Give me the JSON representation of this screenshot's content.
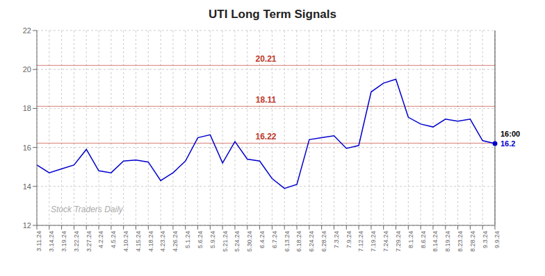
{
  "chart_data": {
    "type": "line",
    "title": "UTI Long Term Signals",
    "watermark": "Stock Traders Daily",
    "categories": [
      "3.11.24",
      "3.14.24",
      "3.19.24",
      "3.22.24",
      "3.27.24",
      "4.2.24",
      "4.5.24",
      "4.10.24",
      "4.15.24",
      "4.18.24",
      "4.23.24",
      "4.26.24",
      "5.1.24",
      "5.6.24",
      "5.9.24",
      "5.21.24",
      "5.24.24",
      "5.30.24",
      "6.4.24",
      "6.7.24",
      "6.13.24",
      "6.18.24",
      "6.24.24",
      "6.28.24",
      "7.3.24",
      "7.9.24",
      "7.12.24",
      "7.19.24",
      "7.24.24",
      "7.29.24",
      "8.1.24",
      "8.6.24",
      "8.14.24",
      "8.19.24",
      "8.23.24",
      "8.28.24",
      "9.3.24",
      "9.9.24"
    ],
    "values": [
      15.1,
      14.7,
      14.9,
      15.1,
      15.9,
      14.8,
      14.7,
      15.3,
      15.35,
      15.25,
      14.3,
      14.7,
      15.3,
      16.5,
      16.65,
      15.2,
      16.3,
      15.4,
      15.3,
      14.4,
      13.9,
      14.1,
      16.4,
      16.5,
      16.6,
      15.95,
      16.1,
      18.85,
      19.3,
      19.5,
      17.55,
      17.2,
      17.05,
      17.45,
      17.35,
      17.45,
      16.35,
      16.2
    ],
    "color": "#0000cc",
    "ylim": [
      12,
      22
    ],
    "yticks": [
      12,
      14,
      16,
      18,
      20,
      22
    ],
    "grid": true,
    "reference_lines": [
      {
        "value": 20.21,
        "label": "20.21",
        "color": "#c0392b"
      },
      {
        "value": 18.11,
        "label": "18.11",
        "color": "#c0392b"
      },
      {
        "value": 16.22,
        "label": "16.22",
        "color": "#c0392b"
      }
    ],
    "annotations": [
      {
        "text": "16:00",
        "color": "#000000"
      },
      {
        "text": "16.2",
        "color": "#0000cc"
      }
    ]
  }
}
